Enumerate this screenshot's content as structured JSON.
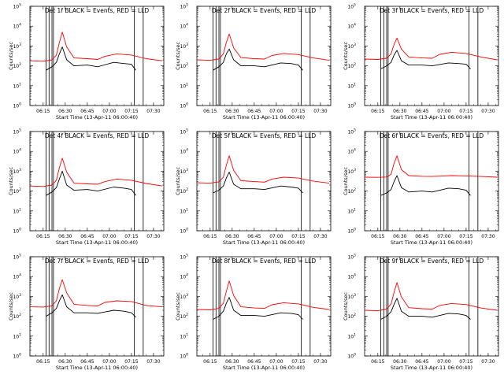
{
  "figure": {
    "ylabel": "Counts/sec",
    "xlabel": "Start Time (13-Apr-11 06:00:40)",
    "xtick_labels": [
      "06:15",
      "06:30",
      "06:45",
      "07:00",
      "07:15",
      "07:30"
    ],
    "ytick_labels": [
      {
        "base": "10",
        "exp": "0"
      },
      {
        "base": "10",
        "exp": "1"
      },
      {
        "base": "10",
        "exp": "2"
      },
      {
        "base": "10",
        "exp": "3"
      },
      {
        "base": "10",
        "exp": "4"
      },
      {
        "base": "10",
        "exp": "5"
      }
    ],
    "colors": {
      "events": "#000000",
      "lld": "#ff0000",
      "axes": "#000000"
    }
  },
  "chart_data": [
    {
      "type": "line",
      "title": "Det 1f BLACK = Events, RED = LLD",
      "yscale": "log",
      "ylim": [
        1,
        100000
      ],
      "xlim": [
        "06:06",
        "07:37"
      ],
      "vlines": [
        "06:17",
        "06:19",
        "06:21",
        "06:22",
        "07:17",
        "07:23"
      ],
      "series": [
        {
          "name": "Events",
          "color": "#000000",
          "x": [
            "06:17",
            "06:21",
            "06:24",
            "06:26",
            "06:28",
            "06:31",
            "06:36",
            "06:45",
            "06:52",
            "07:03",
            "07:10",
            "07:15",
            "07:18"
          ],
          "y": [
            60,
            90,
            150,
            400,
            900,
            200,
            100,
            110,
            90,
            150,
            130,
            120,
            60
          ]
        },
        {
          "name": "LLD",
          "color": "#ff0000",
          "x": [
            "06:06",
            "06:15",
            "06:21",
            "06:24",
            "06:26",
            "06:28",
            "06:31",
            "06:36",
            "06:45",
            "06:52",
            "06:57",
            "07:05",
            "07:15",
            "07:25",
            "07:36"
          ],
          "y": [
            180,
            170,
            200,
            350,
            1500,
            5000,
            900,
            250,
            230,
            210,
            300,
            400,
            350,
            230,
            180
          ]
        }
      ]
    },
    {
      "type": "line",
      "title": "Det 2f BLACK = Events, RED = LLD",
      "yscale": "log",
      "ylim": [
        1,
        100000
      ],
      "xlim": [
        "06:06",
        "07:37"
      ],
      "vlines": [
        "06:17",
        "06:19",
        "06:21",
        "06:22",
        "07:17",
        "07:23"
      ],
      "series": [
        {
          "name": "Events",
          "color": "#000000",
          "x": [
            "06:17",
            "06:21",
            "06:24",
            "06:26",
            "06:28",
            "06:31",
            "06:36",
            "06:45",
            "06:52",
            "07:03",
            "07:10",
            "07:15",
            "07:18"
          ],
          "y": [
            60,
            90,
            150,
            400,
            700,
            200,
            100,
            100,
            90,
            140,
            130,
            110,
            60
          ]
        },
        {
          "name": "LLD",
          "color": "#ff0000",
          "x": [
            "06:06",
            "06:15",
            "06:21",
            "06:24",
            "06:26",
            "06:28",
            "06:31",
            "06:36",
            "06:45",
            "06:52",
            "06:57",
            "07:05",
            "07:15",
            "07:25",
            "07:36"
          ],
          "y": [
            200,
            190,
            220,
            400,
            1500,
            4000,
            800,
            260,
            230,
            220,
            330,
            420,
            370,
            250,
            190
          ]
        }
      ]
    },
    {
      "type": "line",
      "title": "Det 3f BLACK = Events, RED = LLD",
      "yscale": "log",
      "ylim": [
        1,
        100000
      ],
      "xlim": [
        "06:06",
        "07:37"
      ],
      "vlines": [
        "06:17",
        "06:19",
        "06:21",
        "06:22",
        "07:17",
        "07:23"
      ],
      "series": [
        {
          "name": "Events",
          "color": "#000000",
          "x": [
            "06:17",
            "06:21",
            "06:24",
            "06:26",
            "06:28",
            "06:31",
            "06:36",
            "06:45",
            "06:52",
            "07:03",
            "07:10",
            "07:15",
            "07:18"
          ],
          "y": [
            70,
            100,
            150,
            350,
            600,
            180,
            110,
            110,
            100,
            140,
            130,
            120,
            70
          ]
        },
        {
          "name": "LLD",
          "color": "#ff0000",
          "x": [
            "06:06",
            "06:15",
            "06:21",
            "06:24",
            "06:26",
            "06:28",
            "06:31",
            "06:36",
            "06:45",
            "06:52",
            "06:57",
            "07:05",
            "07:15",
            "07:25",
            "07:36"
          ],
          "y": [
            220,
            210,
            240,
            400,
            1200,
            2500,
            700,
            280,
            250,
            240,
            380,
            480,
            420,
            280,
            200
          ]
        }
      ]
    },
    {
      "type": "line",
      "title": "Det 4f BLACK = Events, RED = LLD",
      "yscale": "log",
      "ylim": [
        1,
        100000
      ],
      "xlim": [
        "06:06",
        "07:37"
      ],
      "vlines": [
        "06:17",
        "06:19",
        "06:21",
        "06:22",
        "07:17",
        "07:23"
      ],
      "series": [
        {
          "name": "Events",
          "color": "#000000",
          "x": [
            "06:17",
            "06:21",
            "06:24",
            "06:26",
            "06:28",
            "06:31",
            "06:36",
            "06:45",
            "06:52",
            "07:03",
            "07:10",
            "07:15",
            "07:18"
          ],
          "y": [
            60,
            90,
            150,
            400,
            1000,
            200,
            110,
            120,
            100,
            160,
            140,
            120,
            60
          ]
        },
        {
          "name": "LLD",
          "color": "#ff0000",
          "x": [
            "06:06",
            "06:15",
            "06:21",
            "06:24",
            "06:26",
            "06:28",
            "06:31",
            "06:36",
            "06:45",
            "06:52",
            "06:57",
            "07:05",
            "07:15",
            "07:25",
            "07:36"
          ],
          "y": [
            180,
            170,
            200,
            350,
            1500,
            4500,
            900,
            250,
            230,
            220,
            300,
            400,
            350,
            240,
            180
          ]
        }
      ]
    },
    {
      "type": "line",
      "title": "Det 5f BLACK = Events, RED = LLD",
      "yscale": "log",
      "ylim": [
        1,
        100000
      ],
      "xlim": [
        "06:06",
        "07:37"
      ],
      "vlines": [
        "06:17",
        "06:19",
        "06:21",
        "06:22",
        "07:17",
        "07:23"
      ],
      "series": [
        {
          "name": "Events",
          "color": "#000000",
          "x": [
            "06:17",
            "06:21",
            "06:24",
            "06:26",
            "06:28",
            "06:31",
            "06:36",
            "06:45",
            "06:52",
            "07:03",
            "07:10",
            "07:15",
            "07:18"
          ],
          "y": [
            80,
            110,
            180,
            450,
            900,
            220,
            130,
            130,
            120,
            180,
            160,
            140,
            80
          ]
        },
        {
          "name": "LLD",
          "color": "#ff0000",
          "x": [
            "06:06",
            "06:15",
            "06:21",
            "06:24",
            "06:26",
            "06:28",
            "06:31",
            "06:36",
            "06:45",
            "06:52",
            "06:57",
            "07:05",
            "07:15",
            "07:25",
            "07:36"
          ],
          "y": [
            260,
            250,
            290,
            500,
            2000,
            6000,
            1100,
            330,
            300,
            280,
            400,
            500,
            450,
            320,
            250
          ]
        }
      ]
    },
    {
      "type": "line",
      "title": "Det 6f BLACK = Events, RED = LLD",
      "yscale": "log",
      "ylim": [
        1,
        100000
      ],
      "xlim": [
        "06:06",
        "07:37"
      ],
      "vlines": [
        "06:17",
        "06:19",
        "06:21",
        "06:22",
        "07:17",
        "07:23"
      ],
      "series": [
        {
          "name": "Events",
          "color": "#000000",
          "x": [
            "06:17",
            "06:21",
            "06:24",
            "06:26",
            "06:28",
            "06:31",
            "06:36",
            "06:45",
            "06:52",
            "07:03",
            "07:10",
            "07:15",
            "07:18"
          ],
          "y": [
            60,
            80,
            120,
            300,
            600,
            150,
            90,
            100,
            90,
            140,
            130,
            110,
            60
          ]
        },
        {
          "name": "LLD",
          "color": "#ff0000",
          "x": [
            "06:06",
            "06:15",
            "06:21",
            "06:24",
            "06:26",
            "06:28",
            "06:31",
            "06:36",
            "06:45",
            "06:52",
            "06:57",
            "07:05",
            "07:15",
            "07:25",
            "07:36"
          ],
          "y": [
            500,
            490,
            510,
            700,
            2500,
            6000,
            1200,
            600,
            550,
            540,
            560,
            600,
            580,
            540,
            500
          ]
        }
      ]
    },
    {
      "type": "line",
      "title": "Det 7f BLACK = Events, RED = LLD",
      "yscale": "log",
      "ylim": [
        1,
        100000
      ],
      "xlim": [
        "06:06",
        "07:37"
      ],
      "vlines": [
        "06:17",
        "06:19",
        "06:21",
        "06:22",
        "07:17",
        "07:23"
      ],
      "series": [
        {
          "name": "Events",
          "color": "#000000",
          "x": [
            "06:17",
            "06:21",
            "06:24",
            "06:26",
            "06:28",
            "06:31",
            "06:36",
            "06:45",
            "06:52",
            "07:03",
            "07:10",
            "07:15",
            "07:18"
          ],
          "y": [
            100,
            150,
            250,
            600,
            1200,
            300,
            150,
            150,
            140,
            200,
            180,
            150,
            90
          ]
        },
        {
          "name": "LLD",
          "color": "#ff0000",
          "x": [
            "06:06",
            "06:15",
            "06:21",
            "06:24",
            "06:26",
            "06:28",
            "06:31",
            "06:36",
            "06:45",
            "06:52",
            "06:57",
            "07:05",
            "07:15",
            "07:25",
            "07:36"
          ],
          "y": [
            300,
            290,
            330,
            600,
            2500,
            7000,
            1500,
            400,
            350,
            330,
            500,
            600,
            550,
            350,
            300
          ]
        }
      ]
    },
    {
      "type": "line",
      "title": "Det 8f BLACK = Events, RED = LLD",
      "yscale": "log",
      "ylim": [
        1,
        100000
      ],
      "xlim": [
        "06:06",
        "07:37"
      ],
      "vlines": [
        "06:17",
        "06:19",
        "06:21",
        "06:22",
        "07:17",
        "07:23"
      ],
      "series": [
        {
          "name": "Events",
          "color": "#000000",
          "x": [
            "06:17",
            "06:21",
            "06:24",
            "06:26",
            "06:28",
            "06:31",
            "06:36",
            "06:45",
            "06:52",
            "07:03",
            "07:10",
            "07:15",
            "07:18"
          ],
          "y": [
            70,
            100,
            180,
            450,
            900,
            200,
            110,
            110,
            100,
            150,
            140,
            120,
            70
          ]
        },
        {
          "name": "LLD",
          "color": "#ff0000",
          "x": [
            "06:06",
            "06:15",
            "06:21",
            "06:24",
            "06:26",
            "06:28",
            "06:31",
            "06:36",
            "06:45",
            "06:52",
            "06:57",
            "07:05",
            "07:15",
            "07:25",
            "07:36"
          ],
          "y": [
            220,
            210,
            250,
            450,
            1800,
            6000,
            1100,
            300,
            260,
            250,
            380,
            480,
            420,
            280,
            220
          ]
        }
      ]
    },
    {
      "type": "line",
      "title": "Det 9f BLACK = Events, RED = LLD",
      "yscale": "log",
      "ylim": [
        1,
        100000
      ],
      "xlim": [
        "06:06",
        "07:37"
      ],
      "vlines": [
        "06:17",
        "06:19",
        "06:21",
        "06:22",
        "07:17",
        "07:23"
      ],
      "series": [
        {
          "name": "Events",
          "color": "#000000",
          "x": [
            "06:17",
            "06:21",
            "06:24",
            "06:26",
            "06:28",
            "06:31",
            "06:36",
            "06:45",
            "06:52",
            "07:03",
            "07:10",
            "07:15",
            "07:18"
          ],
          "y": [
            70,
            100,
            170,
            400,
            800,
            180,
            100,
            100,
            90,
            140,
            130,
            110,
            70
          ]
        },
        {
          "name": "LLD",
          "color": "#ff0000",
          "x": [
            "06:06",
            "06:15",
            "06:21",
            "06:24",
            "06:26",
            "06:28",
            "06:31",
            "06:36",
            "06:45",
            "06:52",
            "06:57",
            "07:05",
            "07:15",
            "07:25",
            "07:36"
          ],
          "y": [
            200,
            190,
            230,
            420,
            1600,
            5000,
            950,
            270,
            240,
            230,
            350,
            440,
            390,
            260,
            200
          ]
        }
      ]
    }
  ]
}
